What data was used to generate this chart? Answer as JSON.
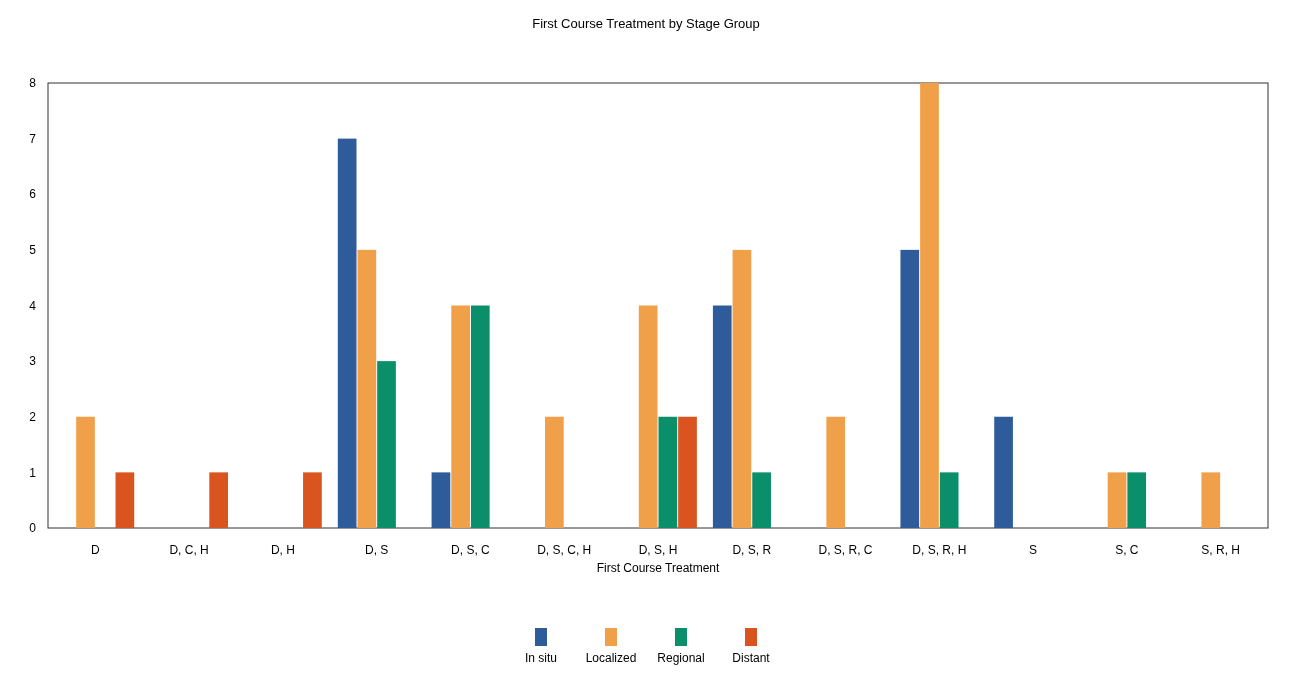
{
  "chart_data": {
    "type": "bar",
    "title": "First Course Treatment by Stage Group",
    "xlabel": "First Course Treatment",
    "categories": [
      "D",
      "D, C, H",
      "D, H",
      "D, S",
      "D, S, C",
      "D, S, C, H",
      "D, S, H",
      "D, S, R",
      "D, S, R, C",
      "D, S, R, H",
      "S",
      "S, C",
      "S, R, H"
    ],
    "series": [
      {
        "name": "In situ",
        "color": "#2e5c9a",
        "values": [
          0,
          0,
          0,
          7,
          1,
          0,
          0,
          4,
          0,
          5,
          2,
          0,
          0
        ]
      },
      {
        "name": "Localized",
        "color": "#f0a048",
        "values": [
          2,
          0,
          0,
          5,
          4,
          2,
          4,
          5,
          2,
          8,
          0,
          1,
          1
        ]
      },
      {
        "name": "Regional",
        "color": "#0a8f6a",
        "values": [
          0,
          0,
          0,
          3,
          4,
          0,
          2,
          1,
          0,
          1,
          0,
          1,
          0
        ]
      },
      {
        "name": "Distant",
        "color": "#d9541e",
        "values": [
          1,
          1,
          1,
          0,
          0,
          0,
          2,
          0,
          0,
          0,
          0,
          0,
          0
        ]
      }
    ],
    "ylim": [
      0,
      8
    ],
    "yticks": [
      0,
      1,
      2,
      3,
      4,
      5,
      6,
      7,
      8
    ],
    "grid": false,
    "legend": "bottom"
  }
}
